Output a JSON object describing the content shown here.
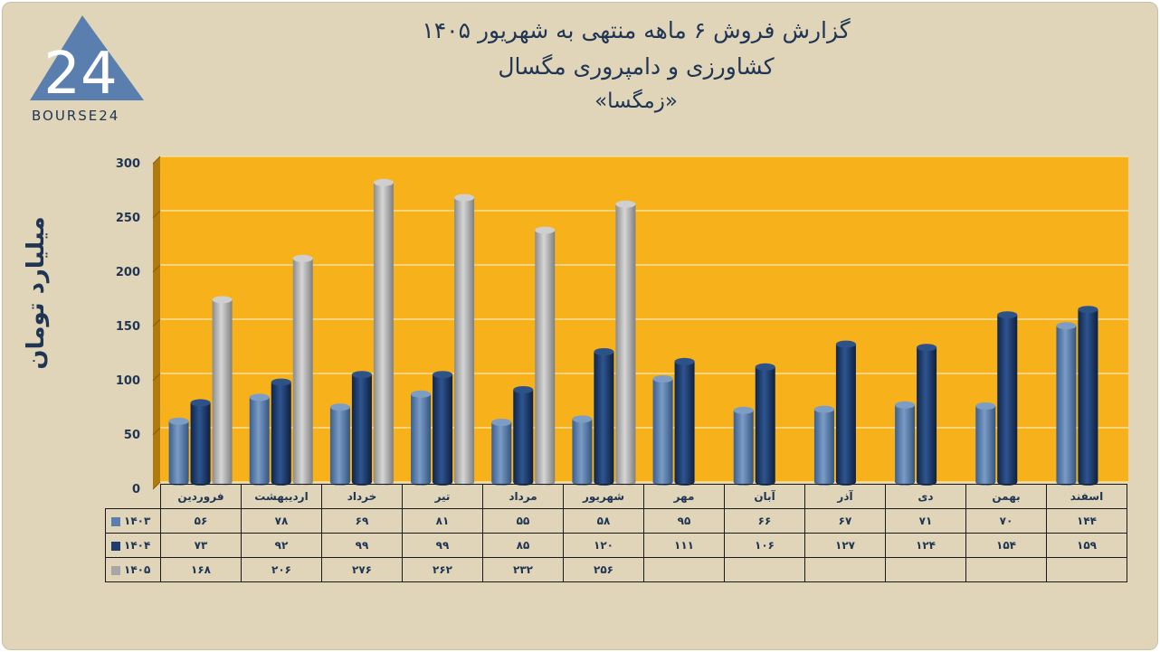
{
  "logo": {
    "text": "BOURSE24",
    "mark": "24"
  },
  "title": {
    "line1": "گزارش  فروش ۶ ماهه منتهی به شهریور ۱۴۰۵",
    "line2": "کشاورزی و دامپروری مگسال",
    "line3": "«زمگسا»"
  },
  "chart_data": {
    "type": "bar",
    "ylabel": "میلیارد تومان",
    "ylim": [
      0,
      300
    ],
    "yticks": [
      0,
      50,
      100,
      150,
      200,
      250,
      300
    ],
    "ytick_labels": [
      "0",
      "50",
      "100",
      "150",
      "200",
      "250",
      "300"
    ],
    "categories": [
      "فروردین",
      "اردیبهشت",
      "خرداد",
      "تیر",
      "مرداد",
      "شهریور",
      "مهر",
      "آبان",
      "آذر",
      "دی",
      "بهمن",
      "اسفند"
    ],
    "series": [
      {
        "name": "۱۴۰۳",
        "color": "#5a7fae",
        "values": [
          56,
          78,
          69,
          81,
          55,
          58,
          95,
          66,
          67,
          71,
          70,
          144
        ],
        "labels": [
          "۵۶",
          "۷۸",
          "۶۹",
          "۸۱",
          "۵۵",
          "۵۸",
          "۹۵",
          "۶۶",
          "۶۷",
          "۷۱",
          "۷۰",
          "۱۴۴"
        ]
      },
      {
        "name": "۱۴۰۴",
        "color": "#1f3c6e",
        "values": [
          73,
          92,
          99,
          99,
          85,
          120,
          111,
          106,
          127,
          124,
          154,
          159
        ],
        "labels": [
          "۷۳",
          "۹۲",
          "۹۹",
          "۹۹",
          "۸۵",
          "۱۲۰",
          "۱۱۱",
          "۱۰۶",
          "۱۲۷",
          "۱۲۴",
          "۱۵۴",
          "۱۵۹"
        ]
      },
      {
        "name": "۱۴۰۵",
        "color": "#a6a6a6",
        "values": [
          168,
          206,
          276,
          262,
          232,
          256,
          null,
          null,
          null,
          null,
          null,
          null
        ],
        "labels": [
          "۱۶۸",
          "۲۰۶",
          "۲۷۶",
          "۲۶۲",
          "۲۳۲",
          "۲۵۶",
          "",
          "",
          "",
          "",
          "",
          ""
        ]
      }
    ],
    "plot_background": "#f7b11b",
    "grid": true,
    "legend": "in-data-table"
  }
}
